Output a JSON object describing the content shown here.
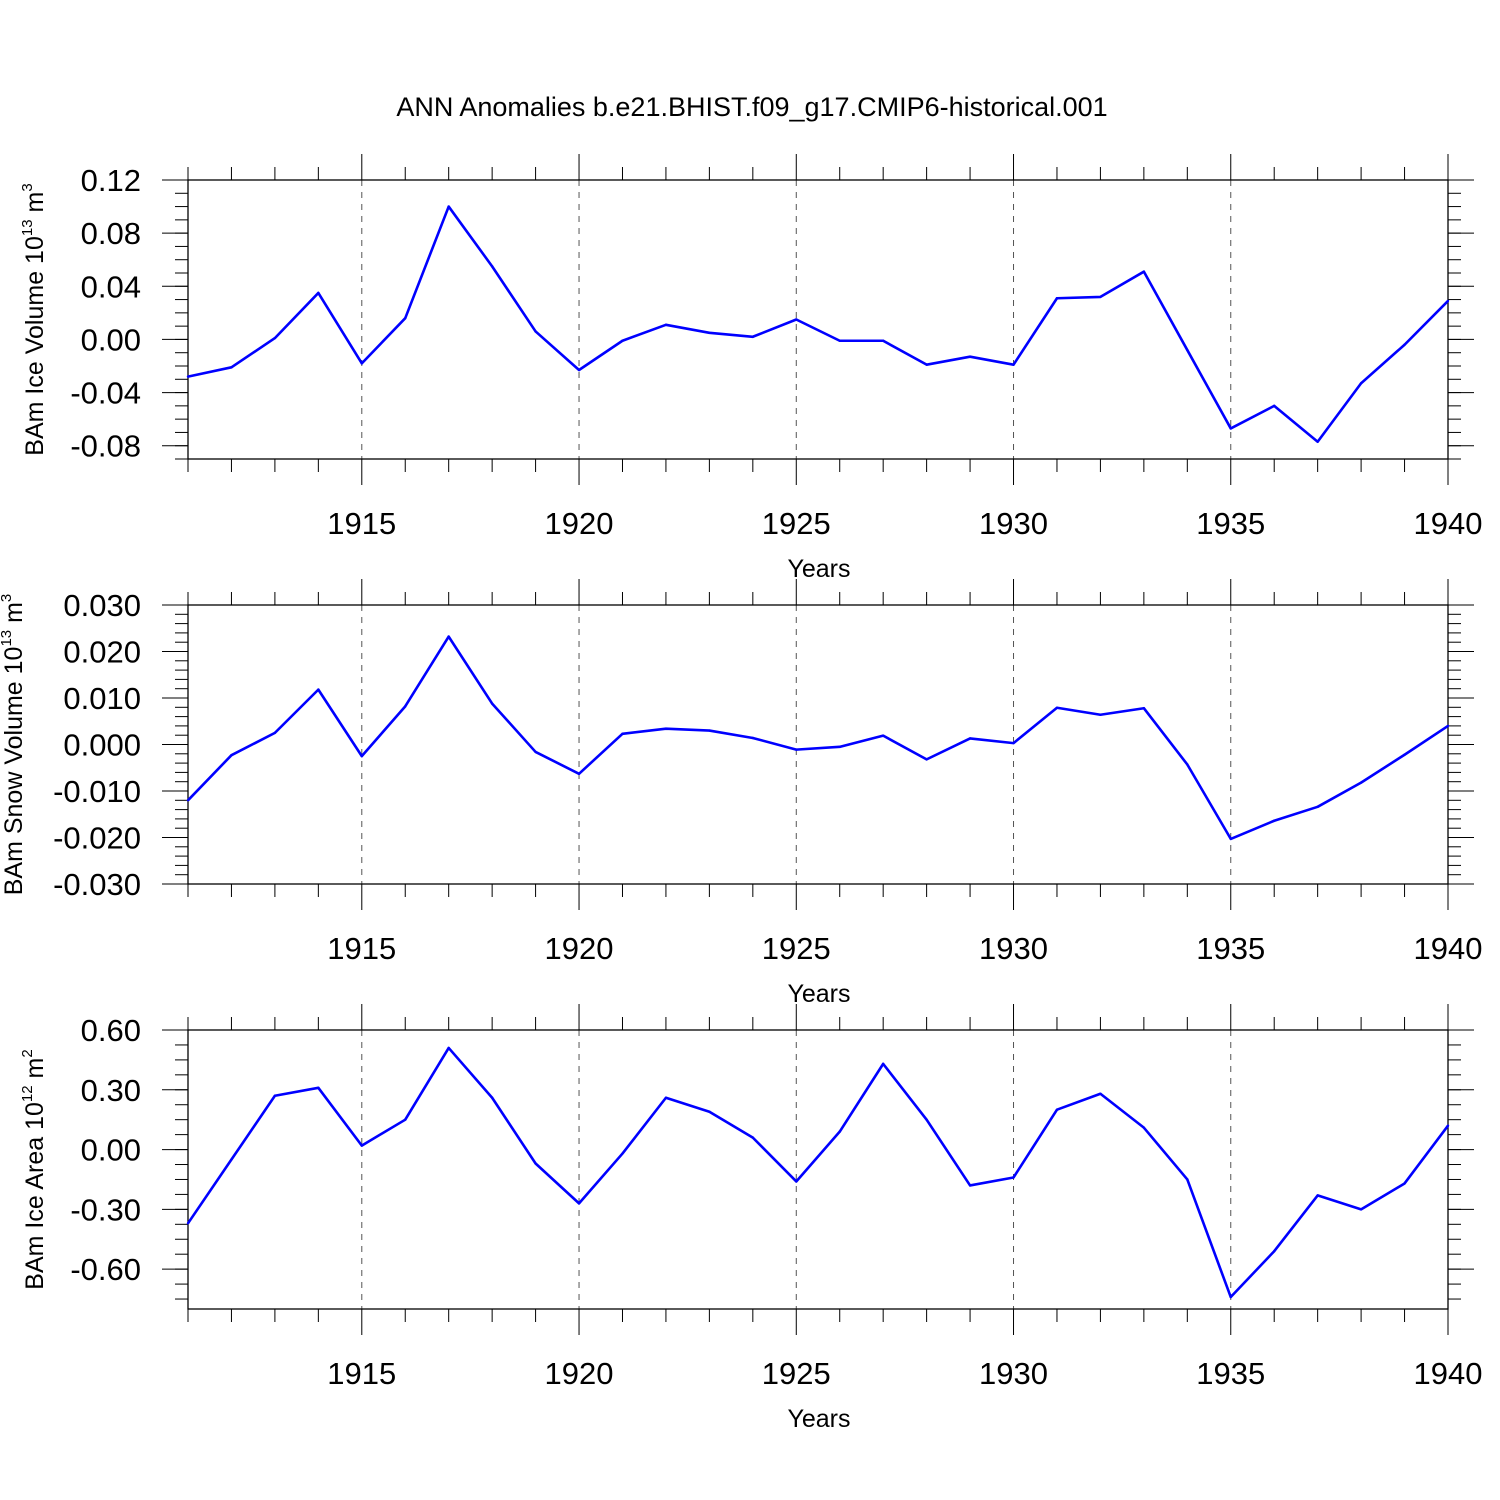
{
  "figure": {
    "title": "ANN Anomalies b.e21.BHIST.f09_g17.CMIP6-historical.001",
    "line_color": "#0000ff",
    "frame_color": "#000000",
    "grid_color": "#555555"
  },
  "chart_data": [
    {
      "type": "line",
      "xlabel": "Years",
      "ylabel": {
        "base": "BAm Ice Volume 10",
        "exponent": "13",
        "unit": " m",
        "unit_exponent": "3"
      },
      "xlim": [
        1911,
        1940
      ],
      "ylim": [
        -0.09,
        0.12
      ],
      "x_major_ticks": [
        1915,
        1920,
        1925,
        1930,
        1935,
        1940
      ],
      "x_tick_labels": [
        "1915",
        "1920",
        "1925",
        "1930",
        "1935",
        "1940"
      ],
      "y_major_ticks": [
        -0.08,
        -0.04,
        0.0,
        0.04,
        0.08,
        0.12
      ],
      "y_tick_labels": [
        "-0.08",
        "-0.04",
        "0.00",
        "0.04",
        "0.08",
        "0.12"
      ],
      "y_minor_step": 0.01,
      "grid": "vertical dashed at major x ticks",
      "x": [
        1911,
        1912,
        1913,
        1914,
        1915,
        1916,
        1917,
        1918,
        1919,
        1920,
        1921,
        1922,
        1923,
        1924,
        1925,
        1926,
        1927,
        1928,
        1929,
        1930,
        1931,
        1932,
        1933,
        1934,
        1935,
        1936,
        1937,
        1938,
        1939,
        1940
      ],
      "values": [
        -0.028,
        -0.021,
        0.001,
        0.035,
        -0.018,
        0.016,
        0.1,
        0.055,
        0.006,
        -0.023,
        -0.001,
        0.011,
        0.005,
        0.002,
        0.015,
        -0.001,
        -0.001,
        -0.019,
        -0.013,
        -0.019,
        0.031,
        0.032,
        0.051,
        -0.008,
        -0.067,
        -0.05,
        -0.077,
        -0.033,
        -0.004,
        0.029
      ]
    },
    {
      "type": "line",
      "xlabel": "Years",
      "ylabel": {
        "base": "BAm Snow Volume 10",
        "exponent": "13",
        "unit": " m",
        "unit_exponent": "3"
      },
      "xlim": [
        1911,
        1940
      ],
      "ylim": [
        -0.03,
        0.03
      ],
      "x_major_ticks": [
        1915,
        1920,
        1925,
        1930,
        1935,
        1940
      ],
      "x_tick_labels": [
        "1915",
        "1920",
        "1925",
        "1930",
        "1935",
        "1940"
      ],
      "y_major_ticks": [
        -0.03,
        -0.02,
        -0.01,
        0.0,
        0.01,
        0.02,
        0.03
      ],
      "y_tick_labels": [
        "-0.030",
        "-0.020",
        "-0.010",
        "0.000",
        "0.010",
        "0.020",
        "0.030"
      ],
      "y_minor_step": 0.002,
      "grid": "vertical dashed at major x ticks",
      "x": [
        1911,
        1912,
        1913,
        1914,
        1915,
        1916,
        1917,
        1918,
        1919,
        1920,
        1921,
        1922,
        1923,
        1924,
        1925,
        1926,
        1927,
        1928,
        1929,
        1930,
        1931,
        1932,
        1933,
        1934,
        1935,
        1936,
        1937,
        1938,
        1939,
        1940
      ],
      "values": [
        -0.012,
        -0.0023,
        0.0025,
        0.0118,
        -0.0025,
        0.0082,
        0.0232,
        0.0088,
        -0.0016,
        -0.0063,
        0.0023,
        0.0034,
        0.003,
        0.0014,
        -0.0011,
        -0.0005,
        0.0019,
        -0.0032,
        0.0013,
        0.0003,
        0.0079,
        0.0064,
        0.0078,
        -0.0043,
        -0.0203,
        -0.0164,
        -0.0134,
        -0.0082,
        -0.0022,
        0.004
      ]
    },
    {
      "type": "line",
      "xlabel": "Years",
      "ylabel": {
        "base": "BAm Ice Area 10",
        "exponent": "12",
        "unit": " m",
        "unit_exponent": "2"
      },
      "xlim": [
        1911,
        1940
      ],
      "ylim": [
        -0.8,
        0.6
      ],
      "x_major_ticks": [
        1915,
        1920,
        1925,
        1930,
        1935,
        1940
      ],
      "x_tick_labels": [
        "1915",
        "1920",
        "1925",
        "1930",
        "1935",
        "1940"
      ],
      "y_major_ticks": [
        -0.6,
        -0.3,
        0.0,
        0.3,
        0.6
      ],
      "y_tick_labels": [
        "-0.60",
        "-0.30",
        "0.00",
        "0.30",
        "0.60"
      ],
      "y_minor_step": 0.075,
      "grid": "vertical dashed at major x ticks",
      "x": [
        1911,
        1912,
        1913,
        1914,
        1915,
        1916,
        1917,
        1918,
        1919,
        1920,
        1921,
        1922,
        1923,
        1924,
        1925,
        1926,
        1927,
        1928,
        1929,
        1930,
        1931,
        1932,
        1933,
        1934,
        1935,
        1936,
        1937,
        1938,
        1939,
        1940
      ],
      "values": [
        -0.37,
        -0.05,
        0.27,
        0.31,
        0.02,
        0.15,
        0.51,
        0.26,
        -0.07,
        -0.27,
        -0.02,
        0.26,
        0.19,
        0.06,
        -0.16,
        0.09,
        0.43,
        0.15,
        -0.18,
        -0.14,
        0.2,
        0.28,
        0.11,
        -0.15,
        -0.74,
        -0.51,
        -0.23,
        -0.3,
        -0.17,
        0.12
      ]
    }
  ]
}
